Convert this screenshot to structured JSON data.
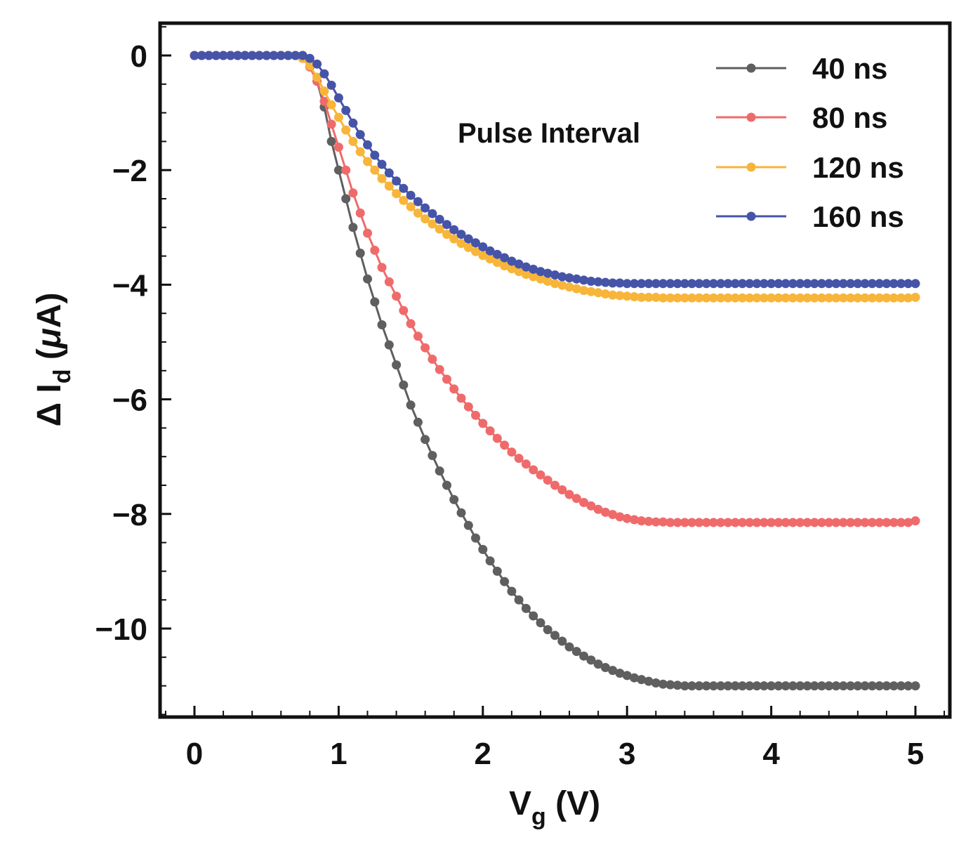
{
  "chart_data": {
    "type": "line",
    "title": "",
    "xlabel": "V",
    "xlabel_sub": "g",
    "xlabel_unit": " (V)",
    "ylabel_prefix": "Δ I",
    "ylabel_sub": "d",
    "ylabel_unit_open": " (",
    "ylabel_unit_mu": "μ",
    "ylabel_unit_rest": "A)",
    "xlim": [
      -0.25,
      5.25
    ],
    "ylim": [
      -11.55,
      0.55
    ],
    "xticks": [
      0,
      1,
      2,
      3,
      4,
      5
    ],
    "yticks": [
      0,
      -2,
      -4,
      -6,
      -8,
      -10
    ],
    "ytick_labels": [
      "0",
      "−2",
      "−4",
      "−6",
      "−8",
      "−10"
    ],
    "grid": false,
    "annotation": "Pulse Interval",
    "legend_position": "top-right",
    "x_start": 0,
    "x_step": 0.05,
    "series": [
      {
        "name": "40 ns",
        "color": "#5f5f5f",
        "values": [
          0,
          0,
          0,
          0,
          0,
          0,
          0,
          0,
          0,
          0,
          0,
          0,
          0,
          0,
          0,
          0,
          -0.2,
          -0.45,
          -0.9,
          -1.5,
          -2.0,
          -2.5,
          -3.0,
          -3.45,
          -3.9,
          -4.3,
          -4.7,
          -5.05,
          -5.4,
          -5.75,
          -6.1,
          -6.4,
          -6.7,
          -6.98,
          -7.25,
          -7.5,
          -7.75,
          -7.98,
          -8.2,
          -8.42,
          -8.62,
          -8.82,
          -9.0,
          -9.18,
          -9.35,
          -9.5,
          -9.65,
          -9.78,
          -9.9,
          -10.02,
          -10.12,
          -10.22,
          -10.32,
          -10.4,
          -10.48,
          -10.55,
          -10.62,
          -10.68,
          -10.73,
          -10.78,
          -10.82,
          -10.86,
          -10.89,
          -10.92,
          -10.95,
          -10.97,
          -10.98,
          -10.99,
          -11.0,
          -11.0,
          -11.0,
          -11.0,
          -11.0,
          -11.0,
          -11.0,
          -11.0,
          -11.0,
          -11.0,
          -11.0,
          -11.0,
          -11.0,
          -11.0,
          -11.0,
          -11.0,
          -11.0,
          -11.0,
          -11.0,
          -11.0,
          -11.0,
          -11.0,
          -11.0,
          -11.0,
          -11.0,
          -11.0,
          -11.0,
          -11.0,
          -11.0,
          -11.0,
          -11.0,
          -11.0,
          -11.0
        ]
      },
      {
        "name": "80 ns",
        "color": "#ef6b6b",
        "values": [
          0,
          0,
          0,
          0,
          0,
          0,
          0,
          0,
          0,
          0,
          0,
          0,
          0,
          0,
          0,
          -0.05,
          -0.2,
          -0.45,
          -0.8,
          -1.2,
          -1.6,
          -2.0,
          -2.4,
          -2.75,
          -3.1,
          -3.4,
          -3.7,
          -3.95,
          -4.2,
          -4.45,
          -4.68,
          -4.9,
          -5.1,
          -5.3,
          -5.48,
          -5.65,
          -5.82,
          -5.98,
          -6.13,
          -6.28,
          -6.42,
          -6.55,
          -6.68,
          -6.8,
          -6.92,
          -7.03,
          -7.13,
          -7.23,
          -7.32,
          -7.41,
          -7.5,
          -7.58,
          -7.66,
          -7.73,
          -7.8,
          -7.86,
          -7.92,
          -7.97,
          -8.01,
          -8.05,
          -8.08,
          -8.1,
          -8.12,
          -8.13,
          -8.14,
          -8.14,
          -8.15,
          -8.15,
          -8.15,
          -8.15,
          -8.15,
          -8.15,
          -8.15,
          -8.15,
          -8.15,
          -8.15,
          -8.15,
          -8.15,
          -8.15,
          -8.15,
          -8.15,
          -8.15,
          -8.15,
          -8.15,
          -8.15,
          -8.15,
          -8.15,
          -8.15,
          -8.15,
          -8.15,
          -8.15,
          -8.15,
          -8.15,
          -8.15,
          -8.15,
          -8.15,
          -8.15,
          -8.15,
          -8.15,
          -8.15,
          -8.12
        ]
      },
      {
        "name": "120 ns",
        "color": "#f7b53a",
        "values": [
          0,
          0,
          0,
          0,
          0,
          0,
          0,
          0,
          0,
          0,
          0,
          0,
          0,
          0,
          0,
          -0.05,
          -0.18,
          -0.38,
          -0.62,
          -0.86,
          -1.08,
          -1.3,
          -1.5,
          -1.68,
          -1.85,
          -2.0,
          -2.15,
          -2.28,
          -2.41,
          -2.53,
          -2.64,
          -2.75,
          -2.85,
          -2.94,
          -3.03,
          -3.12,
          -3.2,
          -3.28,
          -3.35,
          -3.42,
          -3.49,
          -3.55,
          -3.61,
          -3.67,
          -3.72,
          -3.77,
          -3.82,
          -3.86,
          -3.9,
          -3.94,
          -3.98,
          -4.01,
          -4.04,
          -4.07,
          -4.1,
          -4.12,
          -4.14,
          -4.16,
          -4.18,
          -4.19,
          -4.2,
          -4.21,
          -4.22,
          -4.22,
          -4.22,
          -4.23,
          -4.23,
          -4.23,
          -4.23,
          -4.23,
          -4.23,
          -4.23,
          -4.23,
          -4.23,
          -4.23,
          -4.23,
          -4.23,
          -4.23,
          -4.23,
          -4.23,
          -4.23,
          -4.23,
          -4.23,
          -4.23,
          -4.23,
          -4.23,
          -4.23,
          -4.23,
          -4.23,
          -4.23,
          -4.23,
          -4.23,
          -4.23,
          -4.23,
          -4.23,
          -4.23,
          -4.23,
          -4.23,
          -4.23,
          -4.23,
          -4.22
        ]
      },
      {
        "name": "160 ns",
        "color": "#4654a8",
        "values": [
          0,
          0,
          0,
          0,
          0,
          0,
          0,
          0,
          0,
          0,
          0,
          0,
          0,
          0,
          0,
          0,
          -0.05,
          -0.15,
          -0.32,
          -0.52,
          -0.74,
          -0.96,
          -1.18,
          -1.38,
          -1.56,
          -1.74,
          -1.9,
          -2.05,
          -2.19,
          -2.32,
          -2.44,
          -2.55,
          -2.66,
          -2.76,
          -2.86,
          -2.95,
          -3.04,
          -3.12,
          -3.2,
          -3.27,
          -3.34,
          -3.41,
          -3.47,
          -3.53,
          -3.59,
          -3.64,
          -3.69,
          -3.73,
          -3.77,
          -3.8,
          -3.83,
          -3.86,
          -3.88,
          -3.9,
          -3.92,
          -3.94,
          -3.95,
          -3.96,
          -3.97,
          -3.97,
          -3.98,
          -3.98,
          -3.98,
          -3.98,
          -3.98,
          -3.98,
          -3.98,
          -3.98,
          -3.98,
          -3.98,
          -3.98,
          -3.98,
          -3.98,
          -3.98,
          -3.98,
          -3.98,
          -3.98,
          -3.98,
          -3.98,
          -3.98,
          -3.98,
          -3.98,
          -3.98,
          -3.98,
          -3.98,
          -3.98,
          -3.98,
          -3.98,
          -3.98,
          -3.98,
          -3.98,
          -3.98,
          -3.98,
          -3.98,
          -3.98,
          -3.98,
          -3.98,
          -3.98,
          -3.98,
          -3.98,
          -3.98
        ]
      }
    ]
  }
}
